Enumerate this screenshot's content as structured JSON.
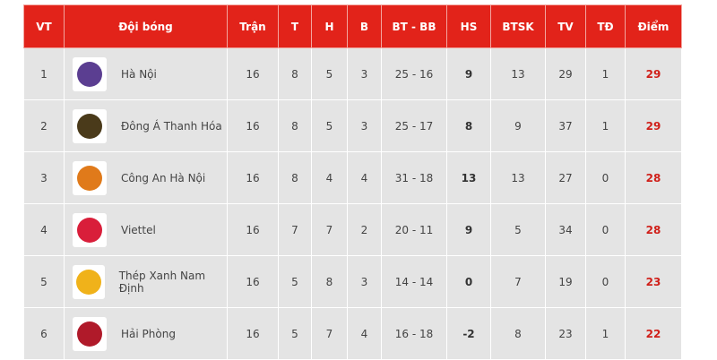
{
  "headers": [
    "VT",
    "Đội bóng",
    "Trận",
    "T",
    "H",
    "B",
    "BT - BB",
    "HS",
    "BTSK",
    "TV",
    "TĐ",
    "Điểm"
  ],
  "rows": [
    {
      "vt": "1",
      "team": "Hà Nội",
      "logo": "ha-noi-logo",
      "color": "#5b3e91",
      "tran": "16",
      "t": "8",
      "h": "5",
      "b": "3",
      "btbb": "25 - 16",
      "hs": "9",
      "btsk": "13",
      "tv": "29",
      "td": "1",
      "diem": "29"
    },
    {
      "vt": "2",
      "team": "Đông Á Thanh Hóa",
      "logo": "thanh-hoa-logo",
      "color": "#4a3a1a",
      "tran": "16",
      "t": "8",
      "h": "5",
      "b": "3",
      "btbb": "25 - 17",
      "hs": "8",
      "btsk": "9",
      "tv": "37",
      "td": "1",
      "diem": "29"
    },
    {
      "vt": "3",
      "team": "Công An Hà Nội",
      "logo": "cong-an-ha-noi-logo",
      "color": "#e07a1a",
      "tran": "16",
      "t": "8",
      "h": "4",
      "b": "4",
      "btbb": "31 - 18",
      "hs": "13",
      "btsk": "13",
      "tv": "27",
      "td": "0",
      "diem": "28"
    },
    {
      "vt": "4",
      "team": "Viettel",
      "logo": "viettel-logo",
      "color": "#d91e3a",
      "tran": "16",
      "t": "7",
      "h": "7",
      "b": "2",
      "btbb": "20 - 11",
      "hs": "9",
      "btsk": "5",
      "tv": "34",
      "td": "0",
      "diem": "28"
    },
    {
      "vt": "5",
      "team": "Thép Xanh Nam Định",
      "logo": "nam-dinh-logo",
      "color": "#f0b21a",
      "tran": "16",
      "t": "5",
      "h": "8",
      "b": "3",
      "btbb": "14 - 14",
      "hs": "0",
      "btsk": "7",
      "tv": "19",
      "td": "0",
      "diem": "23"
    },
    {
      "vt": "6",
      "team": "Hải Phòng",
      "logo": "hai-phong-logo",
      "color": "#b01a2a",
      "tran": "16",
      "t": "5",
      "h": "7",
      "b": "4",
      "btbb": "16 - 18",
      "hs": "-2",
      "btsk": "8",
      "tv": "23",
      "td": "1",
      "diem": "22"
    }
  ]
}
